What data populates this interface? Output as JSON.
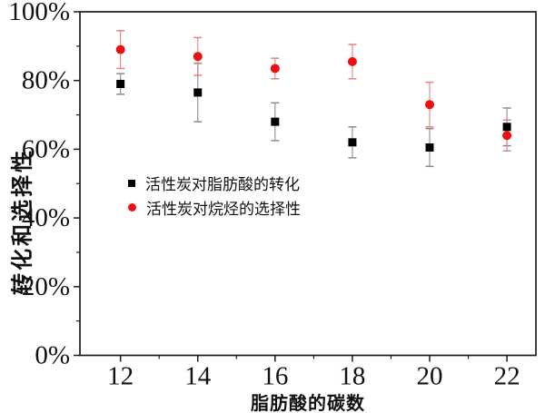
{
  "figure": {
    "background": "#ffffff",
    "frame_color": "#1c1c1c"
  },
  "chart_data": {
    "type": "scatter",
    "title": "",
    "xlabel": "脂肪酸的碳数",
    "ylabel": "转化和选择性",
    "xlim": [
      10.95,
      22.75
    ],
    "ylim": [
      0,
      100
    ],
    "x_major_ticks": [
      12,
      14,
      16,
      18,
      20,
      22
    ],
    "x_tick_labels": [
      "12",
      "14",
      "16",
      "18",
      "20",
      "22"
    ],
    "x_minor_ticks": [
      13,
      15,
      17,
      19,
      21
    ],
    "y_major_ticks": [
      0,
      20,
      40,
      60,
      80,
      100
    ],
    "y_tick_labels": [
      "0%",
      "20%",
      "40%",
      "60%",
      "80%",
      "100%"
    ],
    "y_minor_ticks": [
      10,
      30,
      50,
      70,
      90
    ],
    "grid": false,
    "legend_position": "inside-left-middle",
    "x": [
      12,
      14,
      16,
      18,
      20,
      22
    ],
    "series": [
      {
        "name": "活性炭对脂肪酸的转化",
        "marker": "square",
        "color": "#000000",
        "errorbar_color": "#8c8c8c",
        "values": [
          79,
          76.5,
          68,
          62,
          60.5,
          66.5
        ],
        "errors": [
          3,
          8.5,
          5.5,
          4.5,
          5.5,
          5.5
        ]
      },
      {
        "name": "活性炭对烷烃的选择性",
        "marker": "circle",
        "color": "#ee1010",
        "errorbar_color": "#e08585",
        "values": [
          89,
          87,
          83.5,
          85.5,
          73,
          64
        ],
        "errors": [
          5.5,
          5.5,
          3,
          5,
          6.5,
          4.5
        ]
      }
    ]
  }
}
